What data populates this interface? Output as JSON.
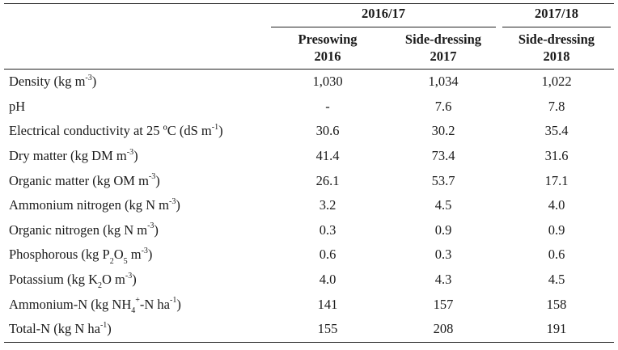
{
  "table": {
    "group_headers": [
      "2016/17",
      "2017/18"
    ],
    "sub_headers": [
      {
        "label": "Presowing",
        "year": "2016"
      },
      {
        "label": "Side-dressing",
        "year": "2017"
      },
      {
        "label": "Side-dressing",
        "year": "2018"
      }
    ],
    "rows": [
      {
        "param": [
          "Density (kg m",
          "-3",
          ")"
        ],
        "values": [
          "1,030",
          "1,034",
          "1,022"
        ]
      },
      {
        "param": [
          "pH"
        ],
        "values": [
          "-",
          "7.6",
          "7.8"
        ]
      },
      {
        "param": [
          "Electrical conductivity at 25 ºC (dS m",
          "-1",
          ")"
        ],
        "values": [
          "30.6",
          "30.2",
          "35.4"
        ]
      },
      {
        "param": [
          "Dry matter (kg DM m",
          "-3",
          ")"
        ],
        "values": [
          "41.4",
          "73.4",
          "31.6"
        ]
      },
      {
        "param": [
          "Organic matter (kg OM m",
          "-3",
          ")"
        ],
        "values": [
          "26.1",
          "53.7",
          "17.1"
        ]
      },
      {
        "param": [
          "Ammonium nitrogen (kg N m",
          "-3",
          ")"
        ],
        "values": [
          "3.2",
          "4.5",
          "4.0"
        ]
      },
      {
        "param": [
          "Organic nitrogen (kg N m",
          "-3",
          ")"
        ],
        "values": [
          "0.3",
          "0.9",
          "0.9"
        ]
      },
      {
        "param": [
          "Phosphorous (kg P",
          "2",
          "O",
          "5",
          " m",
          "-3",
          ")"
        ],
        "values": [
          "0.6",
          "0.3",
          "0.6"
        ]
      },
      {
        "param": [
          "Potassium (kg K",
          "2",
          "O m",
          "-3",
          ")"
        ],
        "values": [
          "4.0",
          "4.3",
          "4.5"
        ]
      },
      {
        "param": [
          "Ammonium-N (kg NH",
          "4",
          "+",
          "-N ha",
          "-1",
          ")"
        ],
        "values": [
          "141",
          "157",
          "158"
        ]
      },
      {
        "param": [
          "Total-N (kg N ha",
          "-1",
          ")"
        ],
        "values": [
          "155",
          "208",
          "191"
        ]
      }
    ]
  }
}
